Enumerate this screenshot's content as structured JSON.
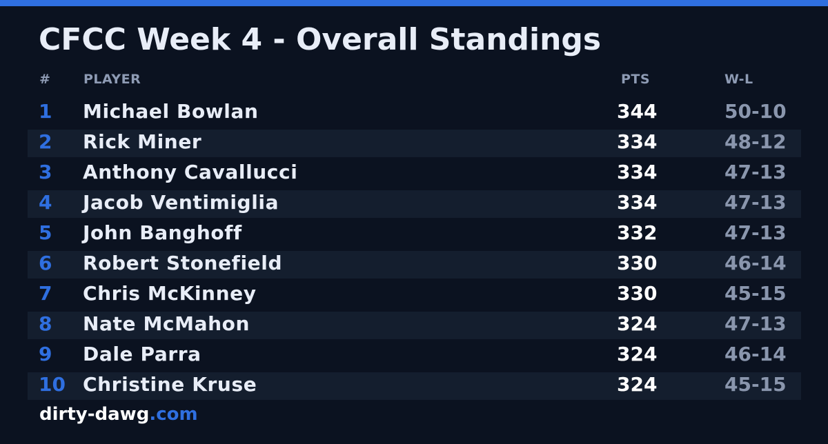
{
  "title": "CFCC Week 4 - Overall Standings",
  "columns": {
    "rank": "#",
    "player": "PLAYER",
    "pts": "PTS",
    "wl": "W-L"
  },
  "standings": [
    {
      "rank": "1",
      "player": "Michael Bowlan",
      "pts": "344",
      "wl": "50-10"
    },
    {
      "rank": "2",
      "player": "Rick Miner",
      "pts": "334",
      "wl": "48-12"
    },
    {
      "rank": "3",
      "player": "Anthony Cavallucci",
      "pts": "334",
      "wl": "47-13"
    },
    {
      "rank": "4",
      "player": "Jacob Ventimiglia",
      "pts": "334",
      "wl": "47-13"
    },
    {
      "rank": "5",
      "player": "John Banghoff",
      "pts": "332",
      "wl": "47-13"
    },
    {
      "rank": "6",
      "player": "Robert Stonefield",
      "pts": "330",
      "wl": "46-14"
    },
    {
      "rank": "7",
      "player": "Chris McKinney",
      "pts": "330",
      "wl": "45-15"
    },
    {
      "rank": "8",
      "player": "Nate McMahon",
      "pts": "324",
      "wl": "47-13"
    },
    {
      "rank": "9",
      "player": "Dale Parra",
      "pts": "324",
      "wl": "46-14"
    },
    {
      "rank": "10",
      "player": "Christine Kruse",
      "pts": "324",
      "wl": "45-15"
    }
  ],
  "footer": {
    "site": "dirty-dawg",
    "tld": ".com"
  },
  "colors": {
    "background": "#0b1220",
    "accent": "#2f6fe0",
    "row_alt": "#141e2e",
    "muted": "#8a96ad"
  }
}
